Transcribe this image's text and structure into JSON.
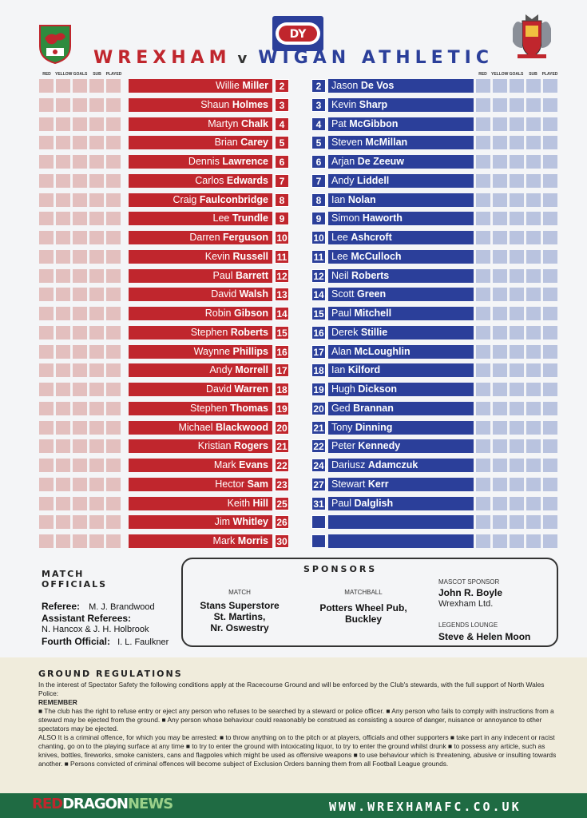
{
  "title": {
    "home": "WREXHAM",
    "v": "v",
    "away": "WIGAN ATHLETIC"
  },
  "sponsor_logo": "DY",
  "col_headers": {
    "red": "RED",
    "yellow": "YELLOW",
    "goals": "GOALS",
    "sub": "SUB",
    "played": "PLAYED"
  },
  "home_players": [
    {
      "first": "Willie",
      "last": "Miller",
      "num": "2"
    },
    {
      "first": "Shaun",
      "last": "Holmes",
      "num": "3"
    },
    {
      "first": "Martyn",
      "last": "Chalk",
      "num": "4"
    },
    {
      "first": "Brian",
      "last": "Carey",
      "num": "5"
    },
    {
      "first": "Dennis",
      "last": "Lawrence",
      "num": "6"
    },
    {
      "first": "Carlos",
      "last": "Edwards",
      "num": "7"
    },
    {
      "first": "Craig",
      "last": "Faulconbridge",
      "num": "8"
    },
    {
      "first": "Lee",
      "last": "Trundle",
      "num": "9"
    },
    {
      "first": "Darren",
      "last": "Ferguson",
      "num": "10"
    },
    {
      "first": "Kevin",
      "last": "Russell",
      "num": "11"
    },
    {
      "first": "Paul",
      "last": "Barrett",
      "num": "12"
    },
    {
      "first": "David",
      "last": "Walsh",
      "num": "13"
    },
    {
      "first": "Robin",
      "last": "Gibson",
      "num": "14"
    },
    {
      "first": "Stephen",
      "last": "Roberts",
      "num": "15"
    },
    {
      "first": "Waynne",
      "last": "Phillips",
      "num": "16"
    },
    {
      "first": "Andy",
      "last": "Morrell",
      "num": "17"
    },
    {
      "first": "David",
      "last": "Warren",
      "num": "18"
    },
    {
      "first": "Stephen",
      "last": "Thomas",
      "num": "19"
    },
    {
      "first": "Michael",
      "last": "Blackwood",
      "num": "20"
    },
    {
      "first": "Kristian",
      "last": "Rogers",
      "num": "21"
    },
    {
      "first": "Mark",
      "last": "Evans",
      "num": "22"
    },
    {
      "first": "Hector",
      "last": "Sam",
      "num": "23"
    },
    {
      "first": "Keith",
      "last": "Hill",
      "num": "25"
    },
    {
      "first": "Jim",
      "last": "Whitley",
      "num": "26"
    },
    {
      "first": "Mark",
      "last": "Morris",
      "num": "30"
    }
  ],
  "away_players": [
    {
      "num": "2",
      "first": "Jason",
      "last": "De Vos"
    },
    {
      "num": "3",
      "first": "Kevin",
      "last": "Sharp"
    },
    {
      "num": "4",
      "first": "Pat",
      "last": "McGibbon"
    },
    {
      "num": "5",
      "first": "Steven",
      "last": "McMillan"
    },
    {
      "num": "6",
      "first": "Arjan",
      "last": "De Zeeuw"
    },
    {
      "num": "7",
      "first": "Andy",
      "last": "Liddell"
    },
    {
      "num": "8",
      "first": "Ian",
      "last": "Nolan"
    },
    {
      "num": "9",
      "first": "Simon",
      "last": "Haworth"
    },
    {
      "num": "10",
      "first": "Lee",
      "last": "Ashcroft"
    },
    {
      "num": "11",
      "first": "Lee",
      "last": "McCulloch"
    },
    {
      "num": "12",
      "first": "Neil",
      "last": "Roberts"
    },
    {
      "num": "14",
      "first": "Scott",
      "last": "Green"
    },
    {
      "num": "15",
      "first": "Paul",
      "last": "Mitchell"
    },
    {
      "num": "16",
      "first": "Derek",
      "last": "Stillie"
    },
    {
      "num": "17",
      "first": "Alan",
      "last": "McLoughlin"
    },
    {
      "num": "18",
      "first": "Ian",
      "last": "Kilford"
    },
    {
      "num": "19",
      "first": "Hugh",
      "last": "Dickson"
    },
    {
      "num": "20",
      "first": "Ged",
      "last": "Brannan"
    },
    {
      "num": "21",
      "first": "Tony",
      "last": "Dinning"
    },
    {
      "num": "22",
      "first": "Peter",
      "last": "Kennedy"
    },
    {
      "num": "24",
      "first": "Dariusz",
      "last": "Adamczuk"
    },
    {
      "num": "27",
      "first": "Stewart",
      "last": "Kerr"
    },
    {
      "num": "31",
      "first": "Paul",
      "last": "Dalglish"
    },
    {
      "num": "",
      "first": "",
      "last": ""
    },
    {
      "num": "",
      "first": "",
      "last": ""
    }
  ],
  "officials": {
    "title_line1": "MATCH",
    "title_line2": "OFFICIALS",
    "referee_label": "Referee:",
    "referee": "M. J. Brandwood",
    "assistant_label": "Assistant Referees:",
    "assistants": "N. Hancox & J. H. Holbrook",
    "fourth_label": "Fourth Official:",
    "fourth": "I. L. Faulkner"
  },
  "sponsors": {
    "title": "SPONSORS",
    "match_label": "MATCH",
    "match_lines": [
      "Stans Superstore",
      "St. Martins,",
      "Nr. Oswestry"
    ],
    "matchball_label": "MATCHBALL",
    "matchball_lines": [
      "Potters Wheel Pub,",
      "Buckley"
    ],
    "mascot_label": "MASCOT SPONSOR",
    "mascot_name": "John R. Boyle",
    "mascot_company": "Wrexham Ltd.",
    "lounge_label": "LEGENDS LOUNGE",
    "lounge_name": "Steve & Helen Moon"
  },
  "regulations": {
    "title": "GROUND REGULATIONS",
    "intro": "In the interest of Spectator Safety the following conditions apply at the Racecourse Ground and will be enforced by the Club's stewards, with the full support of North Wales Police:",
    "remember": "REMEMBER",
    "para1": "■ The club has the right to refuse entry or eject any person who refuses to be searched by a steward or police officer. ■ Any person who fails to comply with instructions from a steward may be ejected from the ground. ■ Any person whose behaviour could reasonably be construed as consisting a source of danger, nuisance or annoyance to other spectators may be ejected.",
    "para2": "ALSO It is a criminal offence, for which you may be arrested: ■ to throw anything on to the pitch or at players, officials and other supporters ■ take part in any indecent or racist chanting, go on to the playing surface at any time ■ to try to enter the ground with intoxicating liquor, to try to enter the ground whilst drunk ■ to possess any article, such as knives, bottles, fireworks, smoke canisters, cans and flagpoles which might be used as offensive weapons ■ to use behaviour which is threatening, abusive or insulting towards another. ■ Persons convicted of criminal offences will become subject of Exclusion Orders banning them from all Football League grounds."
  },
  "footer": {
    "logo_red": "RED",
    "logo_dragon": "DRAGON",
    "logo_news": "NEWS",
    "website": "WWW.WREXHAMAFC.CO.UK"
  },
  "colors": {
    "home": "#c0262d",
    "away": "#2b3f9a"
  },
  "icons": {
    "left": "wrexham-crest-icon",
    "right": "wigan-crest-icon"
  }
}
